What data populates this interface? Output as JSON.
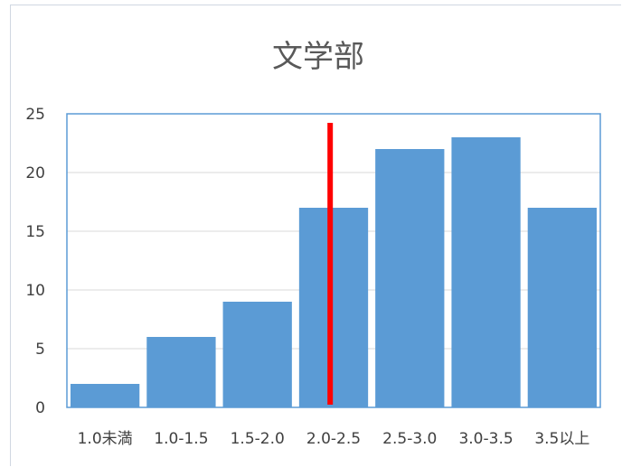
{
  "chart_data": {
    "type": "bar",
    "title": "文学部",
    "xlabel": "",
    "ylabel": "",
    "categories": [
      "1.0未満",
      "1.0-1.5",
      "1.5-2.0",
      "2.0-2.5",
      "2.5-3.0",
      "3.0-3.5",
      "3.5以上"
    ],
    "values": [
      2,
      6,
      9,
      17,
      22,
      23,
      17
    ],
    "ylim": [
      0,
      25
    ],
    "yticks": [
      "0",
      "5",
      "10",
      "15",
      "20",
      "25"
    ],
    "ytick_values": [
      0,
      5,
      10,
      15,
      20,
      25
    ],
    "grid": true,
    "legend": "none",
    "bar_color": "#5b9bd5",
    "marker": {
      "color": "#ff0000",
      "category_index": 3
    }
  }
}
